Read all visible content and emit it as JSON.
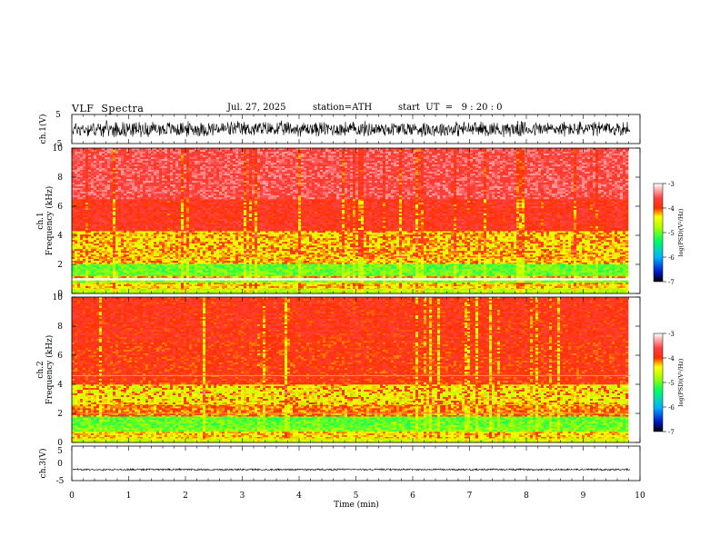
{
  "header": {
    "title": "VLF  Spectra",
    "date": "Jul. 27, 2025",
    "station": "station=ATH",
    "start": "start  UT  =   9 : 20 : 0"
  },
  "chart_data": [
    {
      "type": "line",
      "panel": "ch1-waveform",
      "ylabel": "ch.1(V)",
      "ylim": [
        -5,
        5
      ],
      "yticks": [
        "5",
        "-5"
      ],
      "xlim": [
        0,
        10
      ],
      "data_end": 9.83,
      "amplitude_typical": 2.5
    },
    {
      "type": "heatmap",
      "panel": "ch1-spectrogram",
      "ylabel_line1": "ch.1",
      "ylabel_line2": "Frequency  (kHz)",
      "ylim": [
        0,
        10
      ],
      "yticks": [
        "0",
        "2",
        "4",
        "6",
        "8",
        "10"
      ],
      "xlim": [
        0,
        10
      ],
      "data_end": 9.83,
      "colorbar": {
        "label": "log(PSD)(V²/Hz)",
        "range": [
          -7,
          -3
        ],
        "ticks": [
          "-3",
          "-4",
          "-5",
          "-6",
          "-7"
        ]
      },
      "bands": [
        {
          "f": [
            0.0,
            0.35
          ],
          "level": -4.7
        },
        {
          "f": [
            0.35,
            0.75
          ],
          "level": -4.3
        },
        {
          "f": [
            0.75,
            1.05
          ],
          "level": -4.9
        },
        {
          "f": [
            1.05,
            1.2
          ],
          "level": -4.2
        },
        {
          "f": [
            1.2,
            2.05
          ],
          "level": -5.0
        },
        {
          "f": [
            2.05,
            2.5
          ],
          "level": -4.2
        },
        {
          "f": [
            2.5,
            4.3
          ],
          "level": -4.35
        },
        {
          "f": [
            4.3,
            6.5
          ],
          "level": -3.8
        },
        {
          "f": [
            6.5,
            10.0
          ],
          "level": -3.55
        }
      ],
      "gap_khz": [
        0.9,
        1.05
      ]
    },
    {
      "type": "heatmap",
      "panel": "ch2-spectrogram",
      "ylabel_line1": "ch.2",
      "ylabel_line2": "Frequency  (kHz)",
      "ylim": [
        0,
        10
      ],
      "yticks": [
        "0",
        "2",
        "4",
        "6",
        "8",
        "10"
      ],
      "xlim": [
        0,
        10
      ],
      "data_end": 9.83,
      "colorbar": {
        "label": "log(PSD)(V²/Hz)",
        "range": [
          -7,
          -3
        ],
        "ticks": [
          "-3",
          "-4",
          "-5",
          "-6",
          "-7"
        ]
      },
      "bands": [
        {
          "f": [
            0.0,
            0.3
          ],
          "level": -4.6
        },
        {
          "f": [
            0.3,
            0.75
          ],
          "level": -4.3
        },
        {
          "f": [
            0.75,
            1.0
          ],
          "level": -4.9
        },
        {
          "f": [
            1.0,
            1.8
          ],
          "level": -5.0
        },
        {
          "f": [
            1.8,
            2.0
          ],
          "level": -4.1
        },
        {
          "f": [
            2.0,
            2.6
          ],
          "level": -4.1
        },
        {
          "f": [
            2.6,
            4.0
          ],
          "level": -4.45
        },
        {
          "f": [
            4.0,
            7.0
          ],
          "level": -3.9
        },
        {
          "f": [
            7.0,
            10.0
          ],
          "level": -3.85
        }
      ],
      "lines_khz": [
        2.0,
        4.6
      ]
    },
    {
      "type": "line",
      "panel": "ch3-waveform",
      "ylabel": "ch.3(V)",
      "ylim": [
        -5,
        5
      ],
      "yticks": [
        "5",
        "0",
        "-5"
      ],
      "xlim": [
        0,
        10
      ],
      "data_end": 9.83,
      "offset": -1.8,
      "amplitude_typical": 0.25
    }
  ],
  "xaxis": {
    "label": "Time  (min)",
    "ticks": [
      "0",
      "1",
      "2",
      "3",
      "4",
      "5",
      "6",
      "7",
      "8",
      "9",
      "10"
    ]
  }
}
